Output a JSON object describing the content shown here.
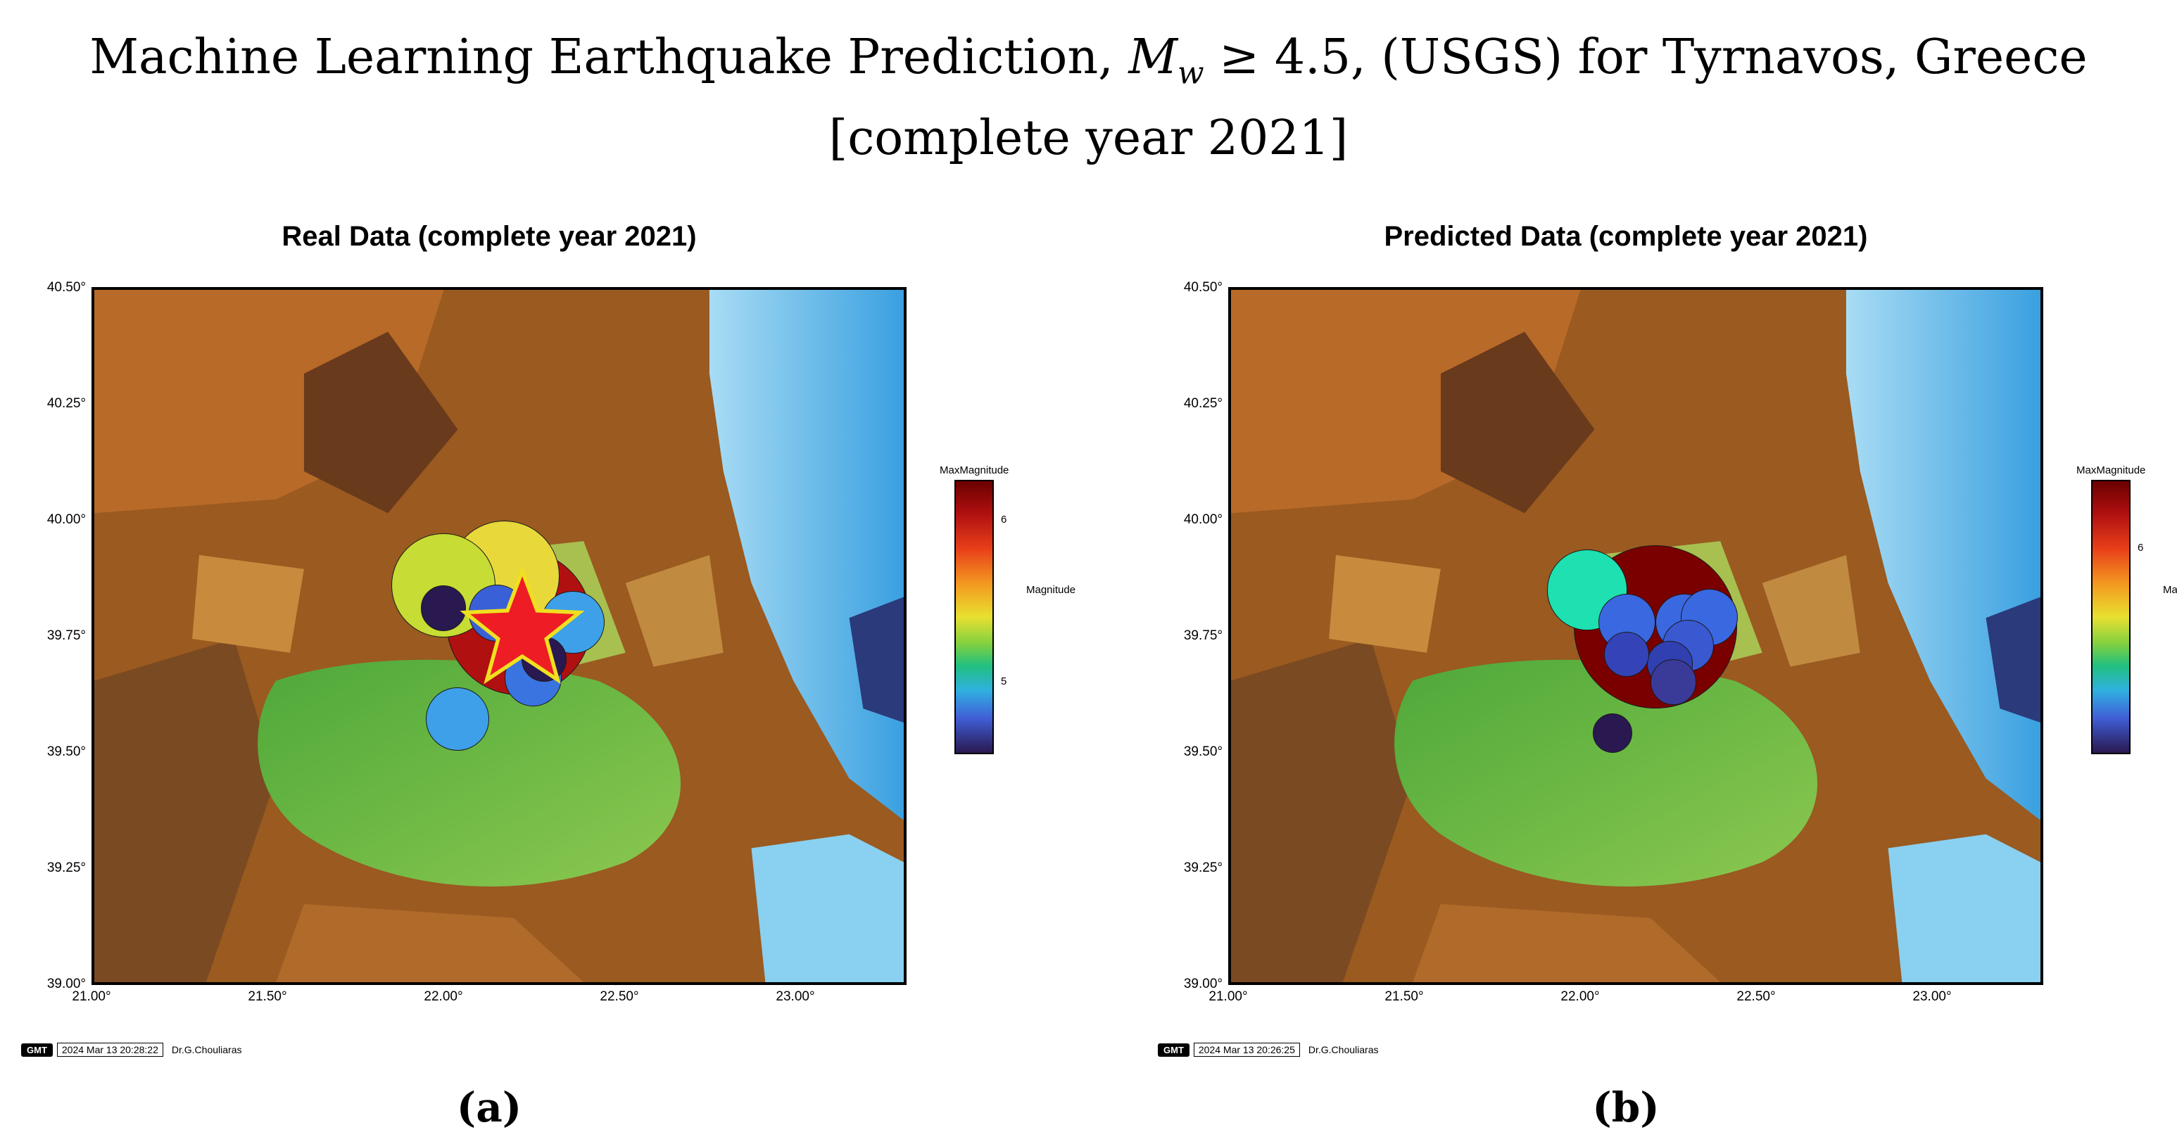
{
  "figure": {
    "title_pre": "Machine Learning Earthquake Prediction, ",
    "title_m": "M",
    "title_sub": "w",
    "title_post": " ≥ 4.5, (USGS) for Tyrnavos, Greece",
    "title_line2": "[complete year 2021]"
  },
  "panels": [
    {
      "title": "Real Data (complete year 2021)",
      "label": "(a)",
      "y_ticks": [
        "40.50°",
        "40.25°",
        "40.00°",
        "39.75°",
        "39.50°",
        "39.25°",
        "39.00°"
      ],
      "x_ticks": [
        "21.00°",
        "21.50°",
        "22.00°",
        "22.50°",
        "23.00°"
      ],
      "colorbar": {
        "title": "MaxMagnitude",
        "ticks": [
          "6",
          "5"
        ],
        "axis_label": "Magnitude"
      },
      "stamp": {
        "logo": "GMT",
        "date": "2024 Mar 13 20:28:22",
        "author": "Dr.G.Chouliaras"
      },
      "markers": [
        {
          "lon": 22.14,
          "lat": 39.88,
          "mag": 5.7,
          "color": "#e8d83a"
        },
        {
          "lon": 21.97,
          "lat": 39.86,
          "mag": 5.6,
          "color": "#c7dc34"
        },
        {
          "lon": 22.33,
          "lat": 39.78,
          "mag": 4.9,
          "color": "#3ea0e8"
        },
        {
          "lon": 22.01,
          "lat": 39.57,
          "mag": 4.9,
          "color": "#3ea0e8"
        },
        {
          "lon": 22.22,
          "lat": 39.66,
          "mag": 4.8,
          "color": "#3a74e0"
        },
        {
          "lon": 21.97,
          "lat": 39.81,
          "mag": 4.6,
          "color": "#2a1850"
        },
        {
          "lon": 22.25,
          "lat": 39.7,
          "mag": 4.6,
          "color": "#2a1850"
        },
        {
          "lon": 22.12,
          "lat": 39.8,
          "mag": 4.8,
          "color": "#3a60d8"
        },
        {
          "lon": 22.18,
          "lat": 39.78,
          "mag": 6.3,
          "color": "#b01010"
        }
      ],
      "mainshock": {
        "lon": 22.19,
        "lat": 39.76,
        "color": "#ee1c24"
      }
    },
    {
      "title": "Predicted Data (complete year 2021)",
      "label": "(b)",
      "y_ticks": [
        "40.50°",
        "40.25°",
        "40.00°",
        "39.75°",
        "39.50°",
        "39.25°",
        "39.00°"
      ],
      "x_ticks": [
        "21.00°",
        "21.50°",
        "22.00°",
        "22.50°",
        "23.00°"
      ],
      "colorbar": {
        "title": "MaxMagnitude",
        "ticks": [
          "6"
        ],
        "axis_label": "Magnitude"
      },
      "stamp": {
        "logo": "GMT",
        "date": "2024 Mar 13 20:26:25",
        "author": "Dr.G.Chouliaras"
      },
      "markers": [
        {
          "lon": 22.18,
          "lat": 39.77,
          "mag": 6.6,
          "color": "#7a0000"
        },
        {
          "lon": 21.99,
          "lat": 39.85,
          "mag": 5.2,
          "color": "#1ee0b0"
        },
        {
          "lon": 22.1,
          "lat": 39.78,
          "mag": 4.8,
          "color": "#3a68e0"
        },
        {
          "lon": 22.26,
          "lat": 39.78,
          "mag": 4.8,
          "color": "#3a68e0"
        },
        {
          "lon": 22.33,
          "lat": 39.79,
          "mag": 4.8,
          "color": "#3a68e0"
        },
        {
          "lon": 22.27,
          "lat": 39.73,
          "mag": 4.7,
          "color": "#3a58d0"
        },
        {
          "lon": 22.22,
          "lat": 39.69,
          "mag": 4.6,
          "color": "#3040b0"
        },
        {
          "lon": 22.1,
          "lat": 39.71,
          "mag": 4.6,
          "color": "#3444b8"
        },
        {
          "lon": 22.23,
          "lat": 39.65,
          "mag": 4.6,
          "color": "#3a3a98"
        },
        {
          "lon": 22.06,
          "lat": 39.54,
          "mag": 4.5,
          "color": "#2a1850"
        }
      ]
    }
  ]
}
